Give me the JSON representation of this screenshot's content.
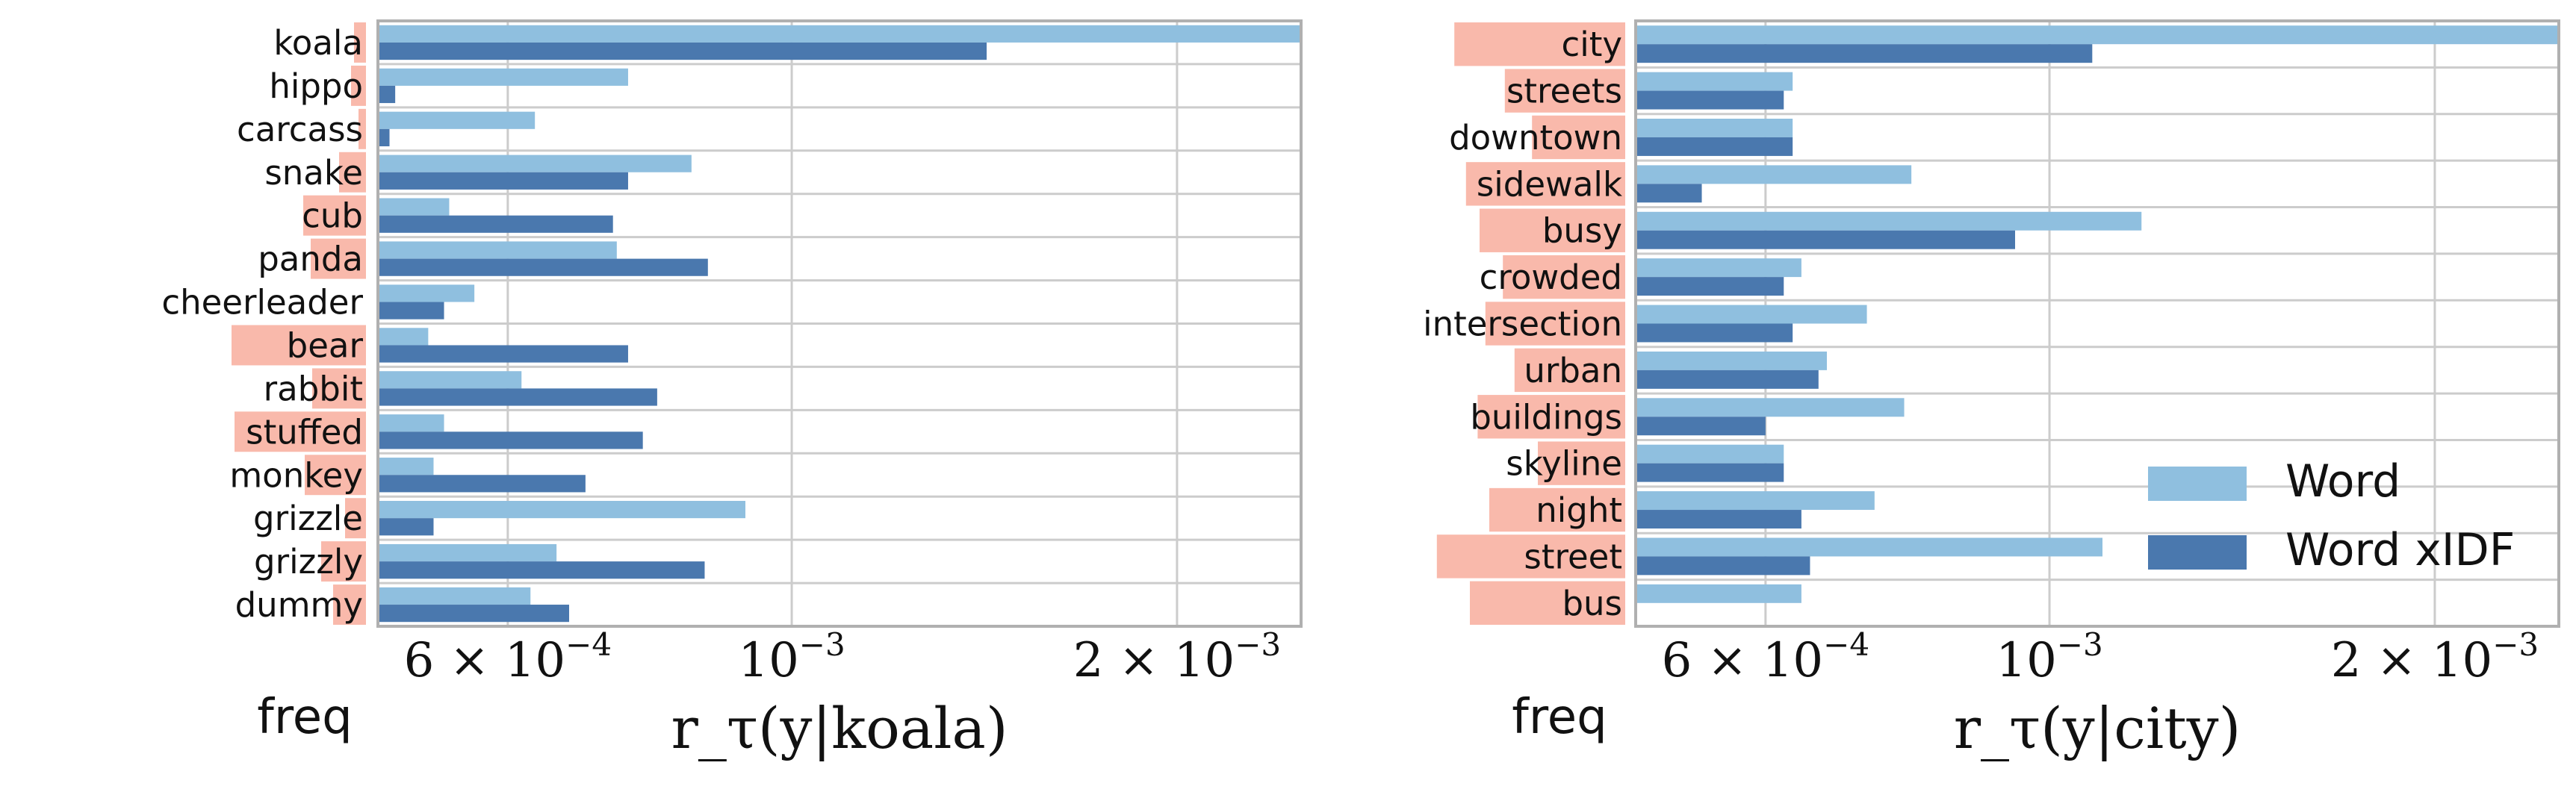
{
  "chart_data": [
    {
      "type": "bar",
      "orientation": "horizontal",
      "query": "koala",
      "xlabel": "r_τ(y|koala)",
      "xscale": "log",
      "xlim": [
        0.000475,
        0.0025
      ],
      "xticks": [
        0.0006,
        0.001,
        0.002
      ],
      "xtick_labels": [
        "6 × 10",
        "10",
        "2 × 10"
      ],
      "xtick_exponents": [
        "−4",
        "−3",
        "−3"
      ],
      "freq_label": "freq",
      "grid": true,
      "categories": [
        "koala",
        "hippo",
        "carcass",
        "snake",
        "cub",
        "panda",
        "cheerleader",
        "bear",
        "rabbit",
        "stuffed",
        "monkey",
        "grizzle",
        "grizzly",
        "dummy"
      ],
      "freq": [
        0.08,
        0.1,
        0.05,
        0.18,
        0.42,
        0.37,
        0.0,
        0.9,
        0.36,
        0.88,
        0.41,
        0.14,
        0.3,
        0.22
      ],
      "series": [
        {
          "name": "Word",
          "values": [
            0.00265,
            0.000745,
            0.00063,
            0.000835,
            0.00054,
            0.00073,
            0.000565,
            0.00052,
            0.000615,
            0.000535,
            0.000525,
            0.00092,
            0.000655,
            0.000625
          ]
        },
        {
          "name": "Word xIDF",
          "values": [
            0.00142,
            0.00049,
            0.000485,
            0.000745,
            0.000725,
            0.00086,
            0.000535,
            0.000745,
            0.000785,
            0.000765,
            0.00069,
            0.000525,
            0.000855,
            0.00067
          ]
        }
      ]
    },
    {
      "type": "bar",
      "orientation": "horizontal",
      "query": "city",
      "xlabel": "r_τ(y|city)",
      "xscale": "log",
      "xlim": [
        0.000475,
        0.0025
      ],
      "xticks": [
        0.0006,
        0.001,
        0.002
      ],
      "xtick_labels": [
        "6 × 10",
        "10",
        "2 × 10"
      ],
      "xtick_exponents": [
        "−4",
        "−3",
        "−3"
      ],
      "freq_label": "freq",
      "grid": true,
      "legend": {
        "position": "lower-right",
        "entries": [
          "Word",
          "Word xIDF"
        ]
      },
      "categories": [
        "city",
        "streets",
        "downtown",
        "sidewalk",
        "busy",
        "crowded",
        "intersection",
        "urban",
        "buildings",
        "skyline",
        "night",
        "street",
        "bus"
      ],
      "freq": [
        0.88,
        0.62,
        0.48,
        0.82,
        0.75,
        0.63,
        0.72,
        0.57,
        0.76,
        0.45,
        0.7,
        0.97,
        0.8
      ],
      "series": [
        {
          "name": "Word",
          "values": [
            0.00265,
            0.00063,
            0.00063,
            0.00078,
            0.00118,
            0.00064,
            0.00072,
            0.00067,
            0.00077,
            0.00062,
            0.00073,
            0.0011,
            0.00064
          ]
        },
        {
          "name": "Word xIDF",
          "values": [
            0.00108,
            0.00062,
            0.00063,
            0.000535,
            0.00094,
            0.00062,
            0.00063,
            0.00066,
            0.0006,
            0.00062,
            0.00064,
            0.00065,
            0.0
          ]
        }
      ]
    }
  ],
  "colors": {
    "word": "#8fbfdf",
    "word_xidf": "#4a78ae",
    "freq": "#f9b9ab",
    "grid": "#cccccc",
    "spine": "#b0b0b0",
    "text": "#111111"
  }
}
